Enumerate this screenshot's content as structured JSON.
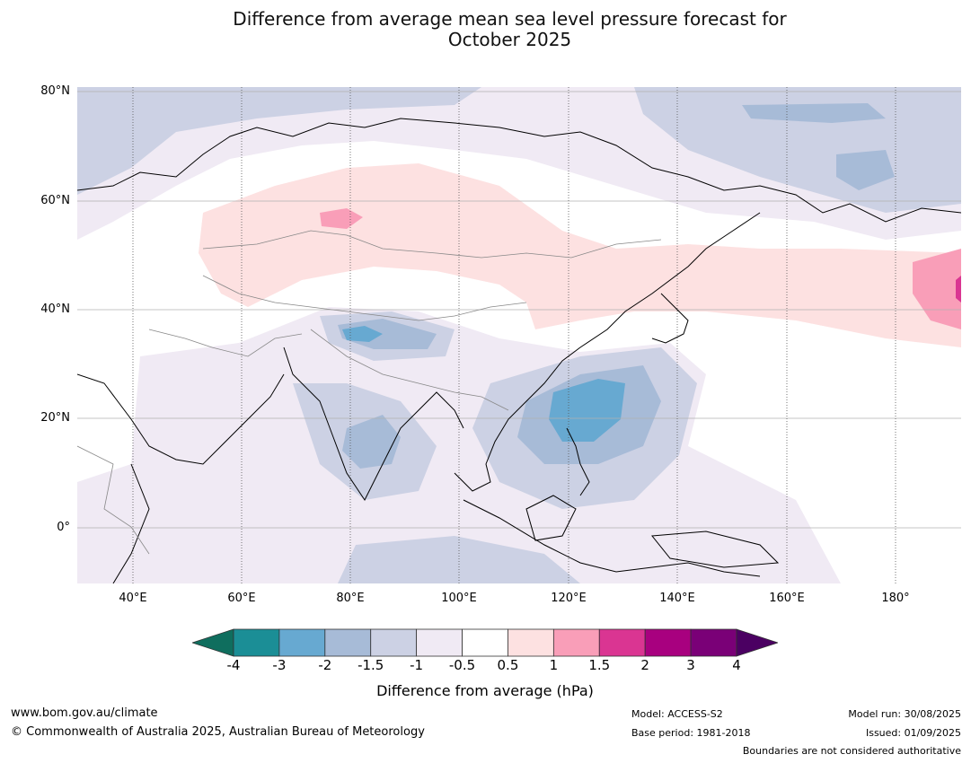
{
  "title": {
    "line1": "Difference from average mean sea level pressure forecast for",
    "line2": "October 2025"
  },
  "map": {
    "lat_labels": [
      "80°N",
      "60°N",
      "40°N",
      "20°N",
      "0°"
    ],
    "lon_labels": [
      "40°E",
      "60°E",
      "80°E",
      "100°E",
      "120°E",
      "140°E",
      "160°E",
      "180°"
    ],
    "colors": {
      "ocean": "#ffffff",
      "coastline": "#000000",
      "border": "#888888",
      "gridline": "#b0b0b0",
      "meridian": "#555555"
    }
  },
  "colorbar": {
    "tick_labels": [
      "-4",
      "-3",
      "-2",
      "-1.5",
      "-1",
      "-0.5",
      "0.5",
      "1",
      "1.5",
      "2",
      "3",
      "4"
    ],
    "colors": [
      "#0f6e5e",
      "#1b8e96",
      "#67a9d1",
      "#a7bbd7",
      "#ccd1e4",
      "#f0eaf4",
      "#ffffff",
      "#fde1e1",
      "#f99eb8",
      "#da3592",
      "#a8007f",
      "#7a0077",
      "#4b0062"
    ],
    "label": "Difference from average (hPa)"
  },
  "footer": {
    "website": "www.bom.gov.au/climate",
    "copyright": "© Commonwealth of Australia 2025, Australian Bureau of Meteorology",
    "model": "Model: ACCESS-S2",
    "base_period": "Base period: 1981-2018",
    "model_run": "Model run: 30/08/2025",
    "issued": "Issued: 01/09/2025",
    "disclaimer": "Boundaries are not considered authoritative"
  }
}
